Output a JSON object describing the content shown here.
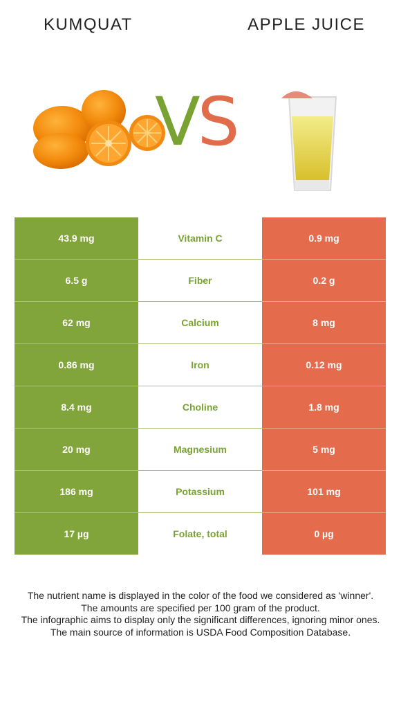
{
  "header": {
    "left_food": "KUMQUAT",
    "right_food": "APPLE JUICE",
    "vs_v": "V",
    "vs_s": "S"
  },
  "colors": {
    "winner_green": "#81a53a",
    "loser_red": "#e46c4d"
  },
  "rows": [
    {
      "left": "43.9 mg",
      "nutrient": "Vitamin C",
      "right": "0.9 mg"
    },
    {
      "left": "6.5 g",
      "nutrient": "Fiber",
      "right": "0.2 g"
    },
    {
      "left": "62 mg",
      "nutrient": "Calcium",
      "right": "8 mg"
    },
    {
      "left": "0.86 mg",
      "nutrient": "Iron",
      "right": "0.12 mg"
    },
    {
      "left": "8.4 mg",
      "nutrient": "Choline",
      "right": "1.8 mg"
    },
    {
      "left": "20 mg",
      "nutrient": "Magnesium",
      "right": "5 mg"
    },
    {
      "left": "186 mg",
      "nutrient": "Potassium",
      "right": "101 mg"
    },
    {
      "left": "17 µg",
      "nutrient": "Folate, total",
      "right": "0 µg"
    }
  ],
  "footnotes": [
    "The nutrient name is displayed in the color of the food we considered as 'winner'.",
    "The amounts are specified per 100 gram of the product.",
    "The infographic aims to display only the significant differences, ignoring minor ones.",
    "The main source of information is USDA Food Composition Database."
  ]
}
